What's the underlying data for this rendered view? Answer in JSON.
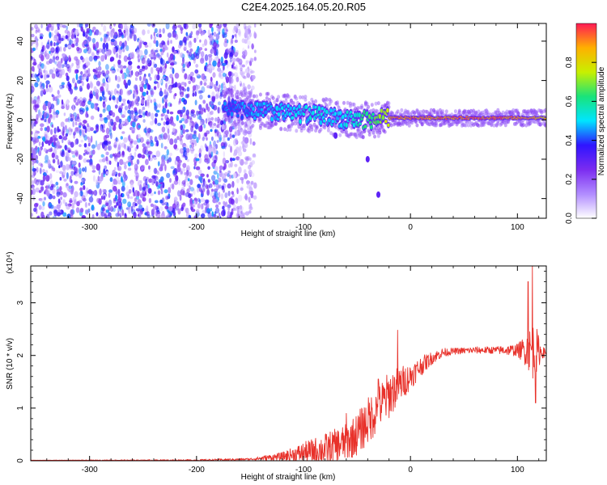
{
  "title": "C2E4.2025.164.05.20.R05",
  "colors": {
    "signal_line": "#e8312a",
    "spectrum_low": "#7b2cf0",
    "spectrum_mid": "#19e37a",
    "spectrum_high": "#ff1a55"
  },
  "chart_data": [
    {
      "type": "heatmap",
      "title": "",
      "xlabel": "Height of straight line (km)",
      "ylabel": "Frequency (Hz)",
      "xlim": [
        -355,
        127
      ],
      "ylim": [
        -50,
        49
      ],
      "x_ticks": [
        -300,
        -200,
        -100,
        0,
        100
      ],
      "y_ticks": [
        -40,
        -20,
        0,
        20,
        40
      ],
      "colorbar": {
        "label": "Normalized spectral amplitude",
        "range": [
          0,
          1
        ],
        "ticks": [
          0.0,
          0.2,
          0.4,
          0.6,
          0.8
        ],
        "colormap": [
          "#ffffff",
          "#b18cff",
          "#7b2cf0",
          "#2f14ff",
          "#00e5ff",
          "#19e37a",
          "#c8f000",
          "#ffb000",
          "#ff1a55"
        ]
      },
      "features": {
        "noise_region_x": [
          -355,
          -165
        ],
        "band_center_hz": [
          [
            -175,
            6
          ],
          [
            -150,
            5
          ],
          [
            -125,
            4
          ],
          [
            -100,
            3
          ],
          [
            -80,
            2
          ],
          [
            -60,
            0
          ],
          [
            -40,
            0
          ],
          [
            -20,
            1
          ],
          [
            0,
            1
          ],
          [
            40,
            1
          ],
          [
            80,
            1
          ],
          [
            120,
            1
          ]
        ],
        "band_strength": [
          [
            -175,
            0.45
          ],
          [
            -140,
            0.5
          ],
          [
            -100,
            0.55
          ],
          [
            -60,
            0.55
          ],
          [
            -25,
            0.75
          ],
          [
            -15,
            0.98
          ],
          [
            40,
            0.98
          ],
          [
            80,
            0.98
          ],
          [
            100,
            0.95
          ],
          [
            120,
            0.9
          ]
        ],
        "isolated_spots": [
          [
            -40,
            -20
          ],
          [
            -30,
            -38
          ],
          [
            -70,
            -8
          ]
        ]
      }
    },
    {
      "type": "line",
      "title": "",
      "xlabel": "Height of straight line (km)",
      "ylabel": "SNR (10 * v/v)",
      "y_multiplier": "(x10⁴)",
      "xlim": [
        -355,
        127
      ],
      "ylim": [
        0,
        3.7
      ],
      "x_ticks": [
        -300,
        -200,
        -100,
        0,
        100
      ],
      "y_ticks": [
        0,
        1,
        2,
        3
      ],
      "series": [
        {
          "trend": [
            [
              -355,
              0.01
            ],
            [
              -300,
              0.01
            ],
            [
              -200,
              0.01
            ],
            [
              -150,
              0.03
            ],
            [
              -120,
              0.08
            ],
            [
              -100,
              0.15
            ],
            [
              -80,
              0.22
            ],
            [
              -60,
              0.35
            ],
            [
              -50,
              0.5
            ],
            [
              -40,
              0.75
            ],
            [
              -30,
              1.0
            ],
            [
              -20,
              1.25
            ],
            [
              -10,
              1.45
            ],
            [
              0,
              1.6
            ],
            [
              10,
              1.8
            ],
            [
              20,
              1.95
            ],
            [
              30,
              2.05
            ],
            [
              40,
              2.08
            ],
            [
              60,
              2.1
            ],
            [
              80,
              2.1
            ],
            [
              100,
              2.1
            ],
            [
              110,
              2.1
            ],
            [
              127,
              2.05
            ]
          ],
          "fluctuation": [
            [
              -355,
              0.0
            ],
            [
              -150,
              0.02
            ],
            [
              -120,
              0.08
            ],
            [
              -100,
              0.2
            ],
            [
              -80,
              0.3
            ],
            [
              -60,
              0.35
            ],
            [
              -40,
              0.45
            ],
            [
              -20,
              0.45
            ],
            [
              -10,
              0.35
            ],
            [
              0,
              0.25
            ],
            [
              20,
              0.12
            ],
            [
              40,
              0.06
            ],
            [
              80,
              0.07
            ],
            [
              100,
              0.12
            ],
            [
              108,
              0.3
            ],
            [
              116,
              0.6
            ],
            [
              122,
              0.15
            ],
            [
              127,
              0.05
            ]
          ],
          "peaks": [
            [
              -12,
              2.48
            ],
            [
              110,
              3.4
            ],
            [
              114,
              3.7
            ],
            [
              117,
              1.1
            ],
            [
              -60,
              0.9
            ],
            [
              -30,
              1.55
            ]
          ]
        }
      ]
    }
  ]
}
